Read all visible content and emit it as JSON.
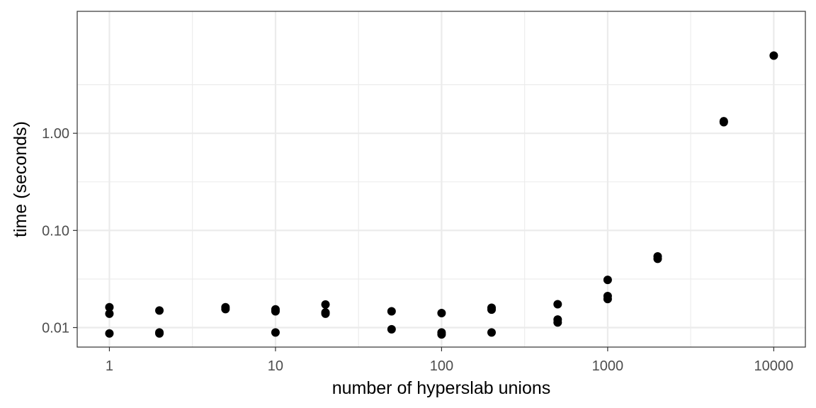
{
  "chart_data": {
    "type": "scatter",
    "title": "",
    "xlabel": "number of hyperslab unions",
    "ylabel": "time (seconds)",
    "x_scale": "log10",
    "y_scale": "log10",
    "xlim": [
      0.64,
      15500
    ],
    "ylim": [
      0.0063,
      18
    ],
    "grid": true,
    "legend": "none",
    "x_ticks": [
      1,
      10,
      100,
      1000,
      10000
    ],
    "x_tick_labels": [
      "1",
      "10",
      "100",
      "1000",
      "10000"
    ],
    "y_ticks": [
      0.01,
      0.1,
      1
    ],
    "y_tick_labels": [
      "0.01",
      "0.10",
      "1.00"
    ],
    "point_color": "#000000",
    "series": [
      {
        "points": [
          {
            "x": 1,
            "y": 0.0162
          },
          {
            "x": 1,
            "y": 0.0139
          },
          {
            "x": 1,
            "y": 0.0087
          },
          {
            "x": 2,
            "y": 0.015
          },
          {
            "x": 2,
            "y": 0.0089
          },
          {
            "x": 2,
            "y": 0.0087
          },
          {
            "x": 5,
            "y": 0.0162
          },
          {
            "x": 5,
            "y": 0.0155
          },
          {
            "x": 10,
            "y": 0.0154
          },
          {
            "x": 10,
            "y": 0.0147
          },
          {
            "x": 10,
            "y": 0.0089
          },
          {
            "x": 20,
            "y": 0.0173
          },
          {
            "x": 20,
            "y": 0.0143
          },
          {
            "x": 20,
            "y": 0.0139
          },
          {
            "x": 50,
            "y": 0.0147
          },
          {
            "x": 50,
            "y": 0.0096
          },
          {
            "x": 100,
            "y": 0.0141
          },
          {
            "x": 100,
            "y": 0.0089
          },
          {
            "x": 100,
            "y": 0.0085
          },
          {
            "x": 200,
            "y": 0.016
          },
          {
            "x": 200,
            "y": 0.0153
          },
          {
            "x": 200,
            "y": 0.0089
          },
          {
            "x": 500,
            "y": 0.0174
          },
          {
            "x": 500,
            "y": 0.0121
          },
          {
            "x": 500,
            "y": 0.0113
          },
          {
            "x": 1000,
            "y": 0.031
          },
          {
            "x": 1000,
            "y": 0.0211
          },
          {
            "x": 1000,
            "y": 0.0197
          },
          {
            "x": 2000,
            "y": 0.054
          },
          {
            "x": 2000,
            "y": 0.051
          },
          {
            "x": 5000,
            "y": 1.33
          },
          {
            "x": 5000,
            "y": 1.3
          },
          {
            "x": 10000,
            "y": 6.3
          }
        ]
      }
    ]
  }
}
